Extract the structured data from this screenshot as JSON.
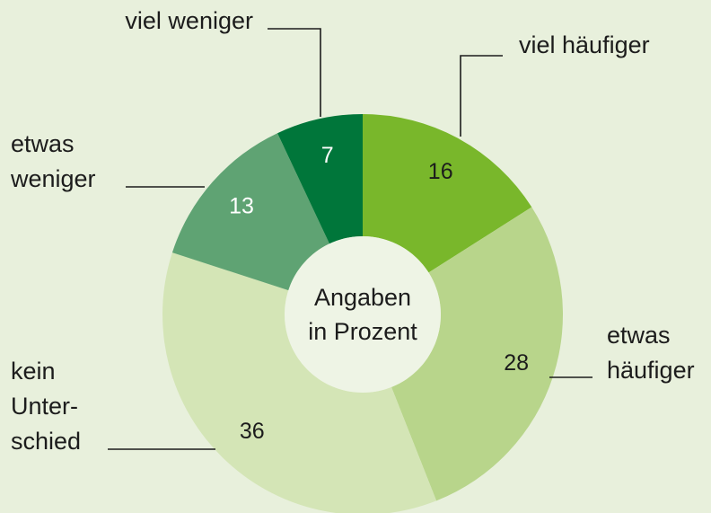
{
  "chart_data": {
    "type": "donut",
    "center_label": [
      "Angaben",
      "in Prozent"
    ],
    "categories": [
      [
        "viel häufiger"
      ],
      [
        "etwas",
        "häufiger"
      ],
      [
        "kein",
        "Unter-",
        "schied"
      ],
      [
        "etwas",
        "weniger"
      ],
      [
        "viel weniger"
      ]
    ],
    "values": [
      16,
      28,
      36,
      13,
      7
    ],
    "colors": [
      "#79b72b",
      "#b8d58b",
      "#d4e5b6",
      "#5fa373",
      "#00763a"
    ]
  }
}
